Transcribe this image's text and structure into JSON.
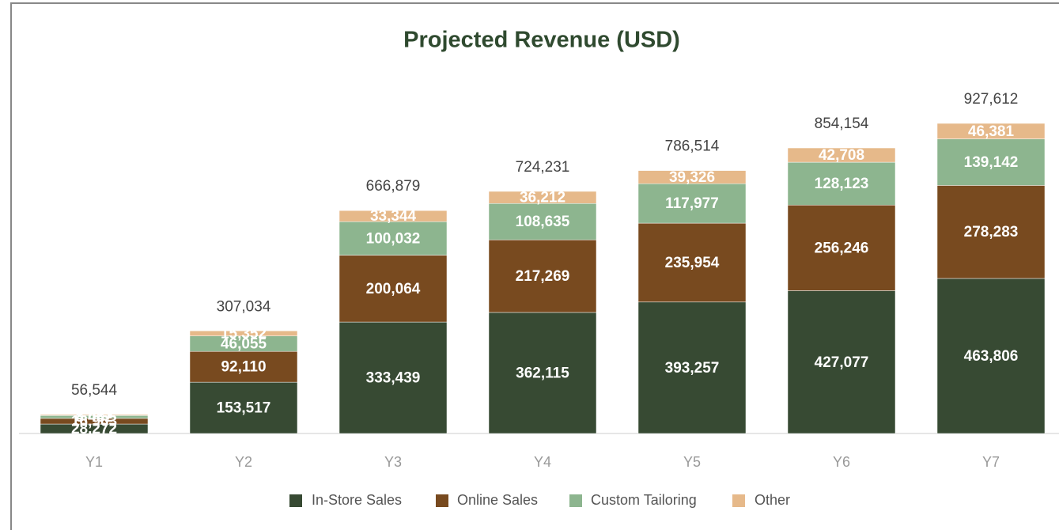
{
  "chart_data": {
    "type": "stacked_bar",
    "title": "Projected Revenue (USD)",
    "categories": [
      "Y1",
      "Y2",
      "Y3",
      "Y4",
      "Y5",
      "Y6",
      "Y7"
    ],
    "series": [
      {
        "name": "In-Store Sales",
        "color": "#374a33",
        "values": [
          28272,
          153517,
          333439,
          362115,
          393257,
          427077,
          463806
        ],
        "value_labels": [
          "28,272",
          "153,517",
          "333,439",
          "362,115",
          "393,257",
          "427,077",
          "463,806"
        ]
      },
      {
        "name": "Online Sales",
        "color": "#784a1f",
        "values": [
          16963,
          92110,
          200064,
          217269,
          235954,
          256246,
          278283
        ],
        "value_labels": [
          "16,963",
          "92,110",
          "200,064",
          "217,269",
          "235,954",
          "256,246",
          "278,283"
        ]
      },
      {
        "name": "Custom Tailoring",
        "color": "#8db58f",
        "values": [
          8482,
          46055,
          100032,
          108635,
          117977,
          128123,
          139142
        ],
        "value_labels": [
          "8,482",
          "46,055",
          "100,032",
          "108,635",
          "117,977",
          "128,123",
          "139,142"
        ]
      },
      {
        "name": "Other",
        "color": "#e6b98a",
        "values": [
          2827,
          15352,
          33344,
          36212,
          39326,
          42708,
          46381
        ],
        "value_labels": [
          "2,827",
          "15,352",
          "33,344",
          "36,212",
          "39,326",
          "42,708",
          "46,381"
        ]
      }
    ],
    "totals": [
      56544,
      307034,
      666879,
      724231,
      786514,
      854154,
      927612
    ],
    "total_labels": [
      "56,544",
      "307,034",
      "666,879",
      "724,231",
      "786,514",
      "854,154",
      "927,612"
    ],
    "ylim": [
      0,
      1000000
    ],
    "legend": "bottom"
  }
}
